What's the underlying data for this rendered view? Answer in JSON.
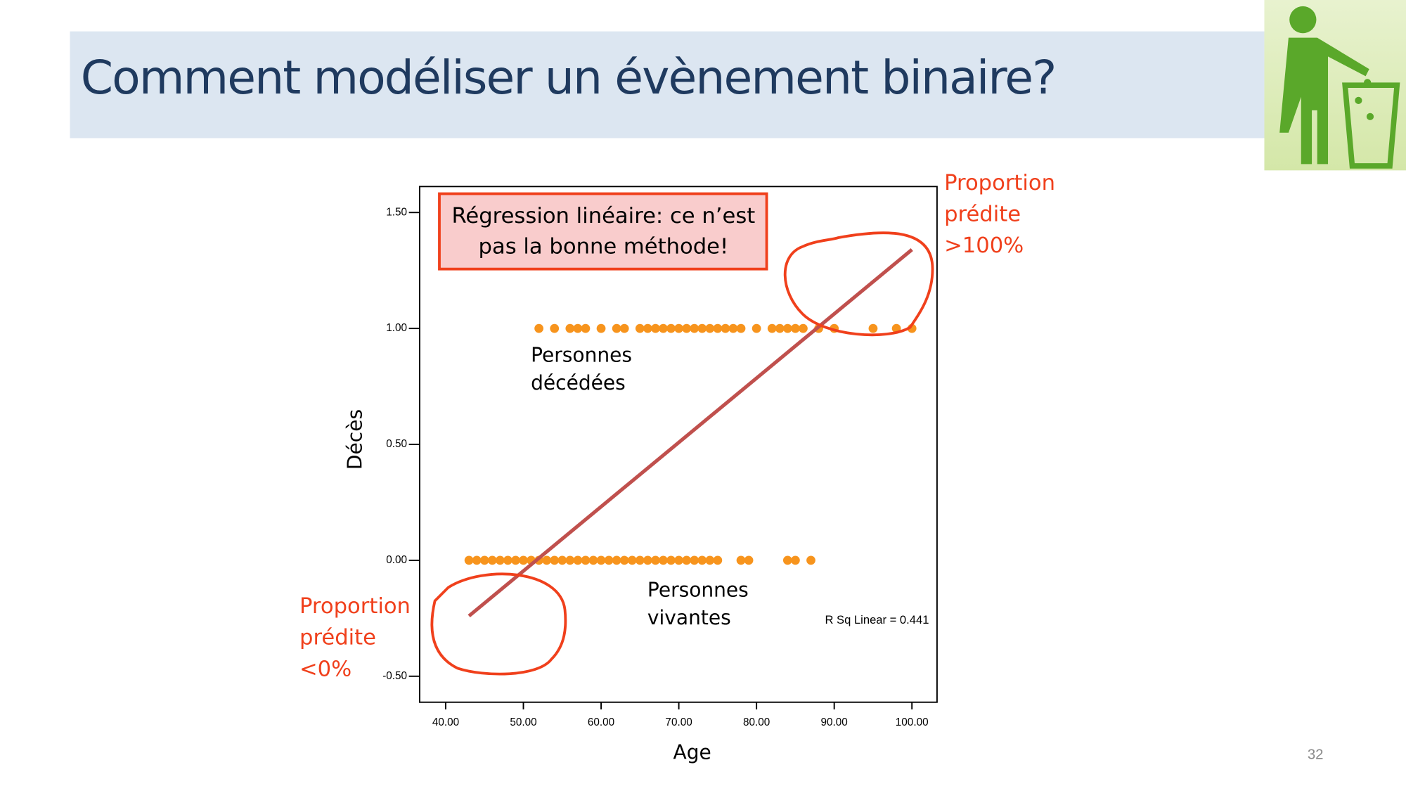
{
  "slide": {
    "title": "Comment modéliser un évènement binaire?",
    "page_number": 32
  },
  "chart_data": {
    "type": "scatter",
    "x_label": "Age",
    "y_label": "Décès",
    "xlim": [
      36.65,
      103.23
    ],
    "ylim": [
      -0.612,
      1.612
    ],
    "xticks": [
      {
        "value": 40,
        "label": "40.00"
      },
      {
        "value": 50,
        "label": "50.00"
      },
      {
        "value": 60,
        "label": "60.00"
      },
      {
        "value": 70,
        "label": "70.00"
      },
      {
        "value": 80,
        "label": "80.00"
      },
      {
        "value": 90,
        "label": "90.00"
      },
      {
        "value": 100,
        "label": "100.00"
      }
    ],
    "yticks": [
      {
        "value": -0.5,
        "label": "-0.50"
      },
      {
        "value": 0,
        "label": "0.00"
      },
      {
        "value": 0.5,
        "label": "0.50"
      },
      {
        "value": 1,
        "label": "1.00"
      },
      {
        "value": 1.5,
        "label": "1.50"
      }
    ],
    "series": [
      {
        "color": "#f7941d",
        "x": [
          52,
          54,
          56,
          57,
          58,
          60,
          62,
          63,
          65,
          66,
          67,
          68,
          69,
          70,
          71,
          72,
          73,
          74,
          75,
          76,
          77,
          78,
          80,
          82,
          83,
          84,
          85,
          86,
          88,
          90,
          95,
          98,
          100
        ],
        "values": [
          1,
          1,
          1,
          1,
          1,
          1,
          1,
          1,
          1,
          1,
          1,
          1,
          1,
          1,
          1,
          1,
          1,
          1,
          1,
          1,
          1,
          1,
          1,
          1,
          1,
          1,
          1,
          1,
          1,
          1,
          1,
          1,
          1
        ]
      },
      {
        "color": "#f7941d",
        "x": [
          43,
          44,
          45,
          46,
          47,
          48,
          49,
          50,
          51,
          52,
          53,
          54,
          55,
          56,
          57,
          58,
          59,
          60,
          61,
          62,
          63,
          64,
          65,
          66,
          67,
          68,
          69,
          70,
          71,
          72,
          73,
          74,
          75,
          78,
          79,
          84,
          85,
          87
        ],
        "values": [
          0,
          0,
          0,
          0,
          0,
          0,
          0,
          0,
          0,
          0,
          0,
          0,
          0,
          0,
          0,
          0,
          0,
          0,
          0,
          0,
          0,
          0,
          0,
          0,
          0,
          0,
          0,
          0,
          0,
          0,
          0,
          0,
          0,
          0,
          0,
          0,
          0,
          0
        ]
      }
    ],
    "fit": {
      "color": "#c0504d",
      "x": [
        43,
        100
      ],
      "values": [
        -0.24,
        1.34
      ]
    },
    "r_squared_label": "R Sq Linear = 0.441",
    "annotations": [
      {
        "lines": [
          "Régression linéaire: ce n’est",
          "pas la bonne méthode!"
        ]
      },
      {
        "lines": [
          "Personnes",
          "décédées"
        ]
      },
      {
        "lines": [
          "Personnes",
          "vivantes"
        ]
      },
      {
        "lines": [
          "Proportion",
          "prédite",
          ">100%"
        ]
      },
      {
        "lines": [
          "Proportion",
          "prédite",
          "<0%"
        ]
      }
    ]
  }
}
